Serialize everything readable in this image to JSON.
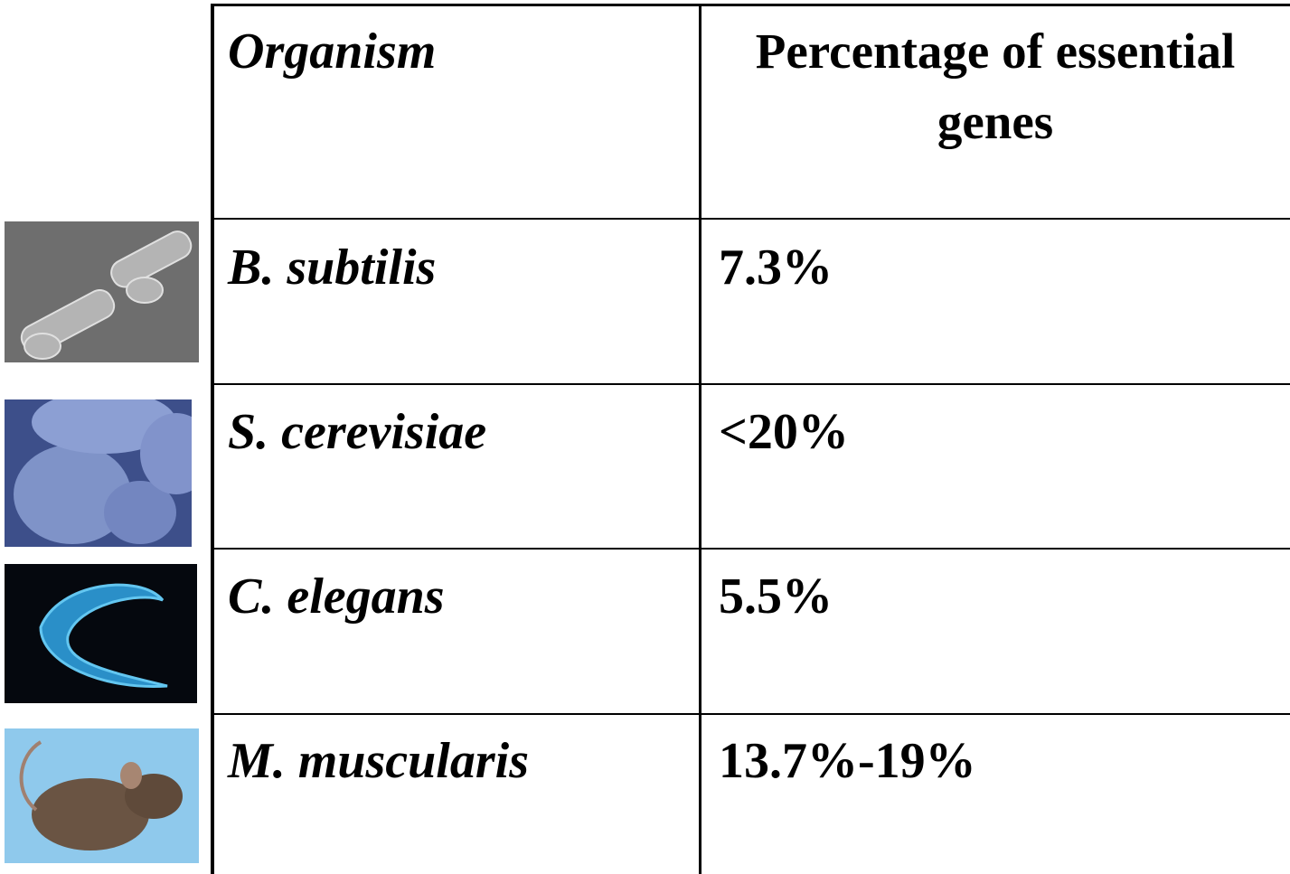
{
  "table": {
    "header": [
      "Organism",
      "Percentage of essential genes"
    ],
    "rows": [
      [
        "B. subtilis",
        "7.3%"
      ],
      [
        "S. cerevisiae",
        "<20%"
      ],
      [
        "C. elegans",
        "5.5%"
      ],
      [
        "M. muscularis",
        "13.7%-19%"
      ]
    ]
  }
}
